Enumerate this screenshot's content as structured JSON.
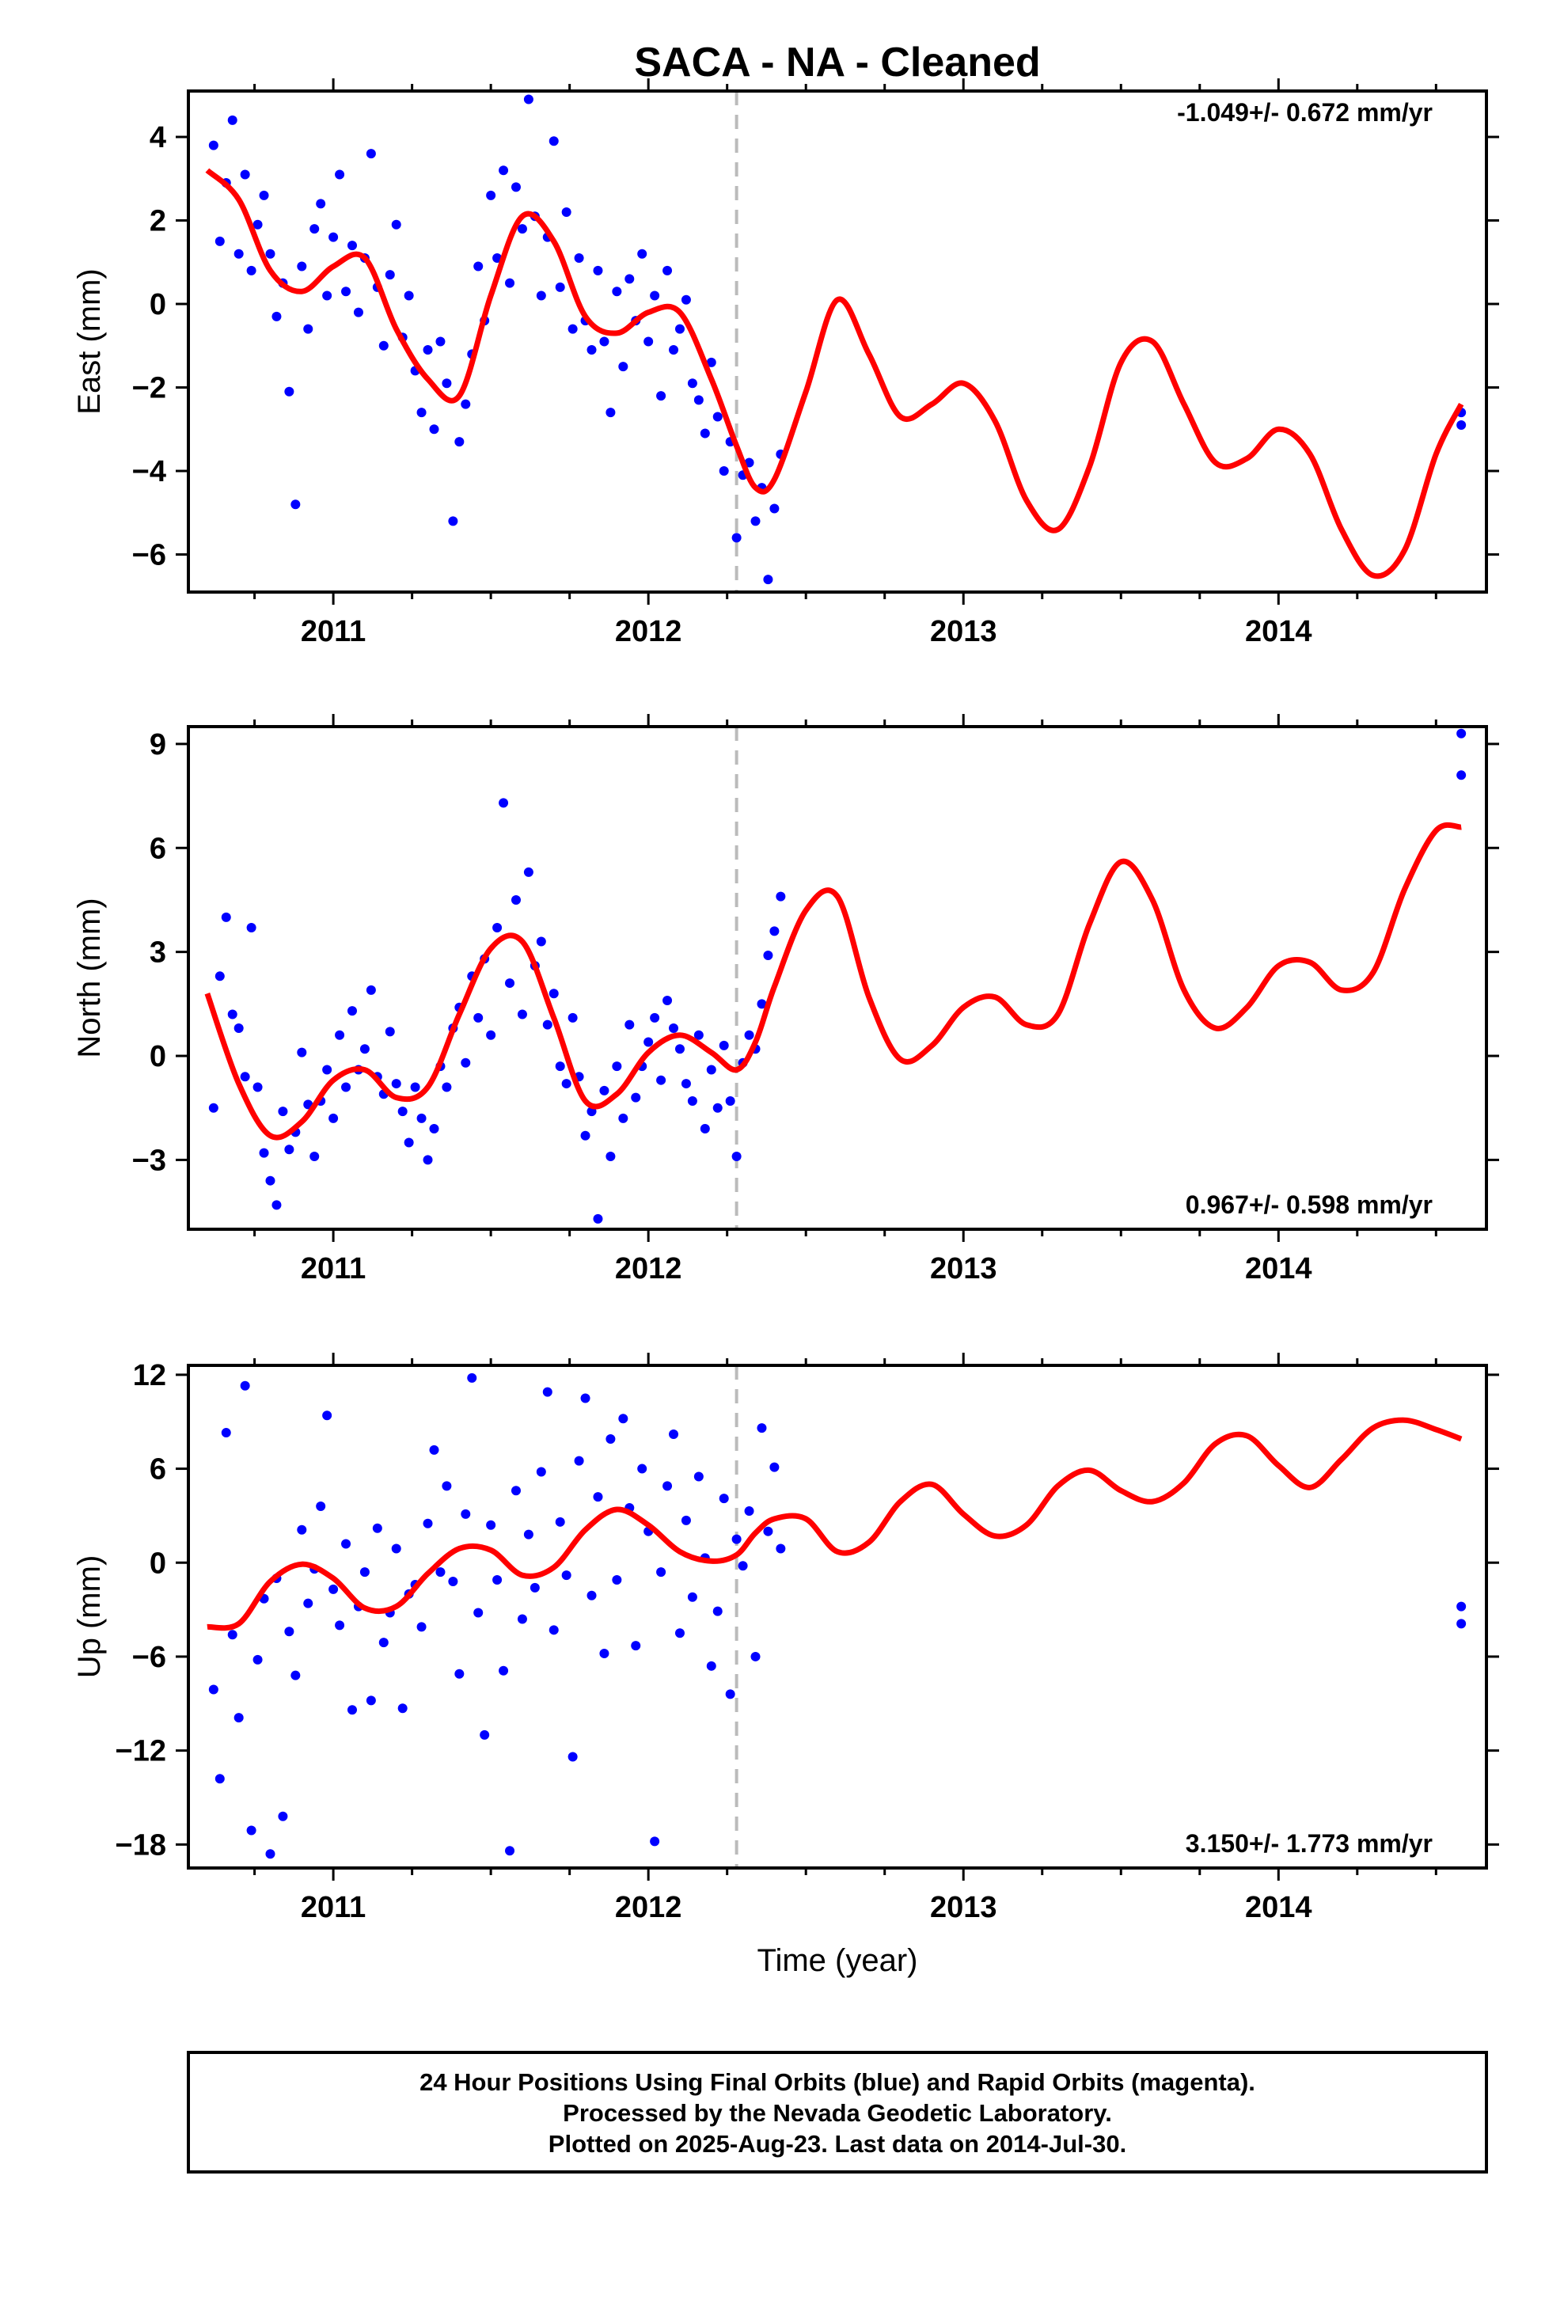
{
  "title": "SACA  - NA - Cleaned",
  "x_axis_label": "Time (year)",
  "footer": {
    "line1": "24 Hour Positions Using Final Orbits (blue) and Rapid Orbits (magenta).",
    "line2": "Processed by the Nevada Geodetic Laboratory.",
    "line3": "Plotted on 2025-Aug-23. Last data on 2014-Jul-30."
  },
  "colors": {
    "points": "#0000ff",
    "model": "#ff0000",
    "reference_line": "#bbbbbb",
    "frame": "#000000"
  },
  "chart_data": [
    {
      "type": "scatter",
      "panel": "east",
      "ylabel": "East (mm)",
      "rate_label": "-1.049+/- 0.672 mm/yr",
      "xlim": [
        2010.54,
        2014.66
      ],
      "ylim": [
        -6.9,
        5.1
      ],
      "x_ticks": [
        2011,
        2012,
        2013,
        2014
      ],
      "y_ticks": [
        4,
        2,
        0,
        -2,
        -4,
        -6
      ],
      "reference_line_x": 2012.28,
      "series": [
        {
          "role": "observations",
          "x": [
            2010.62,
            2010.64,
            2010.66,
            2010.68,
            2010.7,
            2010.72,
            2010.74,
            2010.76,
            2010.78,
            2010.8,
            2010.82,
            2010.84,
            2010.86,
            2010.88,
            2010.9,
            2010.92,
            2010.94,
            2010.96,
            2010.98,
            2011.0,
            2011.02,
            2011.04,
            2011.06,
            2011.08,
            2011.1,
            2011.12,
            2011.14,
            2011.16,
            2011.18,
            2011.2,
            2011.22,
            2011.24,
            2011.26,
            2011.28,
            2011.3,
            2011.32,
            2011.34,
            2011.36,
            2011.38,
            2011.4,
            2011.42,
            2011.44,
            2011.46,
            2011.48,
            2011.5,
            2011.52,
            2011.54,
            2011.56,
            2011.58,
            2011.6,
            2011.62,
            2011.64,
            2011.66,
            2011.68,
            2011.7,
            2011.72,
            2011.74,
            2011.76,
            2011.78,
            2011.8,
            2011.82,
            2011.84,
            2011.86,
            2011.88,
            2011.9,
            2011.92,
            2011.94,
            2011.96,
            2011.98,
            2012.0,
            2012.02,
            2012.04,
            2012.06,
            2012.08,
            2012.1,
            2012.12,
            2012.14,
            2012.16,
            2012.18,
            2012.2,
            2012.22,
            2012.24,
            2012.26,
            2012.28,
            2012.3,
            2012.32,
            2012.34,
            2012.36,
            2012.38,
            2012.4,
            2012.42,
            2014.58,
            2014.58
          ],
          "y": [
            3.8,
            1.5,
            2.9,
            4.4,
            1.2,
            3.1,
            0.8,
            1.9,
            2.6,
            1.2,
            -0.3,
            0.5,
            -2.1,
            -4.8,
            0.9,
            -0.6,
            1.8,
            2.4,
            0.2,
            1.6,
            3.1,
            0.3,
            1.4,
            -0.2,
            1.1,
            3.6,
            0.4,
            -1.0,
            0.7,
            1.9,
            -0.8,
            0.2,
            -1.6,
            -2.6,
            -1.1,
            -3.0,
            -0.9,
            -1.9,
            -5.2,
            -3.3,
            -2.4,
            -1.2,
            0.9,
            -0.4,
            2.6,
            1.1,
            3.2,
            0.5,
            2.8,
            1.8,
            4.9,
            2.1,
            0.2,
            1.6,
            3.9,
            0.4,
            2.2,
            -0.6,
            1.1,
            -0.4,
            -1.1,
            0.8,
            -0.9,
            -2.6,
            0.3,
            -1.5,
            0.6,
            -0.4,
            1.2,
            -0.9,
            0.2,
            -2.2,
            0.8,
            -1.1,
            -0.6,
            0.1,
            -1.9,
            -2.3,
            -3.1,
            -1.4,
            -2.7,
            -4.0,
            -3.3,
            -5.6,
            -4.1,
            -3.8,
            -5.2,
            -4.4,
            -6.6,
            -4.9,
            -3.6,
            -2.9,
            -2.6
          ]
        },
        {
          "role": "model",
          "x": [
            2010.6,
            2010.7,
            2010.8,
            2010.9,
            2011.0,
            2011.1,
            2011.2,
            2011.3,
            2011.4,
            2011.5,
            2011.6,
            2011.7,
            2011.8,
            2011.9,
            2012.0,
            2012.1,
            2012.2,
            2012.28,
            2012.34,
            2012.4,
            2012.5,
            2012.6,
            2012.7,
            2012.8,
            2012.9,
            2013.0,
            2013.1,
            2013.2,
            2013.3,
            2013.4,
            2013.5,
            2013.6,
            2013.7,
            2013.8,
            2013.9,
            2014.0,
            2014.1,
            2014.2,
            2014.3,
            2014.4,
            2014.5,
            2014.58
          ],
          "y": [
            3.2,
            2.5,
            0.8,
            0.3,
            0.9,
            1.1,
            -0.6,
            -1.8,
            -2.2,
            0.2,
            2.1,
            1.5,
            -0.3,
            -0.7,
            -0.2,
            -0.2,
            -1.8,
            -3.4,
            -4.4,
            -4.2,
            -2.1,
            0.1,
            -1.2,
            -2.7,
            -2.4,
            -1.9,
            -2.8,
            -4.7,
            -5.4,
            -3.9,
            -1.4,
            -0.9,
            -2.4,
            -3.8,
            -3.7,
            -3.0,
            -3.6,
            -5.4,
            -6.5,
            -5.9,
            -3.6,
            -2.4
          ]
        }
      ]
    },
    {
      "type": "scatter",
      "panel": "north",
      "ylabel": "North (mm)",
      "rate_label": "0.967+/- 0.598 mm/yr",
      "xlim": [
        2010.54,
        2014.66
      ],
      "ylim": [
        -5.0,
        9.5
      ],
      "x_ticks": [
        2011,
        2012,
        2013,
        2014
      ],
      "y_ticks": [
        9,
        6,
        3,
        0,
        -3
      ],
      "reference_line_x": 2012.28,
      "series": [
        {
          "role": "observations",
          "x": [
            2010.62,
            2010.64,
            2010.66,
            2010.68,
            2010.7,
            2010.72,
            2010.74,
            2010.76,
            2010.78,
            2010.8,
            2010.82,
            2010.84,
            2010.86,
            2010.88,
            2010.9,
            2010.92,
            2010.94,
            2010.96,
            2010.98,
            2011.0,
            2011.02,
            2011.04,
            2011.06,
            2011.08,
            2011.1,
            2011.12,
            2011.14,
            2011.16,
            2011.18,
            2011.2,
            2011.22,
            2011.24,
            2011.26,
            2011.28,
            2011.3,
            2011.32,
            2011.34,
            2011.36,
            2011.38,
            2011.4,
            2011.42,
            2011.44,
            2011.46,
            2011.48,
            2011.5,
            2011.52,
            2011.54,
            2011.56,
            2011.58,
            2011.6,
            2011.62,
            2011.64,
            2011.66,
            2011.68,
            2011.7,
            2011.72,
            2011.74,
            2011.76,
            2011.78,
            2011.8,
            2011.82,
            2011.84,
            2011.86,
            2011.88,
            2011.9,
            2011.92,
            2011.94,
            2011.96,
            2011.98,
            2012.0,
            2012.02,
            2012.04,
            2012.06,
            2012.08,
            2012.1,
            2012.12,
            2012.14,
            2012.16,
            2012.18,
            2012.2,
            2012.22,
            2012.24,
            2012.26,
            2012.28,
            2012.3,
            2012.32,
            2012.34,
            2012.36,
            2012.38,
            2012.4,
            2012.42,
            2014.58,
            2014.58
          ],
          "y": [
            -1.5,
            2.3,
            4.0,
            1.2,
            0.8,
            -0.6,
            3.7,
            -0.9,
            -2.8,
            -3.6,
            -4.3,
            -1.6,
            -2.7,
            -2.2,
            0.1,
            -1.4,
            -2.9,
            -1.3,
            -0.4,
            -1.8,
            0.6,
            -0.9,
            1.3,
            -0.4,
            0.2,
            1.9,
            -0.6,
            -1.1,
            0.7,
            -0.8,
            -1.6,
            -2.5,
            -0.9,
            -1.8,
            -3.0,
            -2.1,
            -0.3,
            -0.9,
            0.8,
            1.4,
            -0.2,
            2.3,
            1.1,
            2.8,
            0.6,
            3.7,
            7.3,
            2.1,
            4.5,
            1.2,
            5.3,
            2.6,
            3.3,
            0.9,
            1.8,
            -0.3,
            -0.8,
            1.1,
            -0.6,
            -2.3,
            -1.6,
            -4.7,
            -1.0,
            -2.9,
            -0.3,
            -1.8,
            0.9,
            -1.2,
            -0.3,
            0.4,
            1.1,
            -0.7,
            1.6,
            0.8,
            0.2,
            -0.8,
            -1.3,
            0.6,
            -2.1,
            -0.4,
            -1.5,
            0.3,
            -1.3,
            -2.9,
            -0.2,
            0.6,
            0.2,
            1.5,
            2.9,
            3.6,
            4.6,
            9.3,
            8.1
          ]
        },
        {
          "role": "model",
          "x": [
            2010.6,
            2010.7,
            2010.8,
            2010.9,
            2011.0,
            2011.1,
            2011.2,
            2011.3,
            2011.4,
            2011.5,
            2011.6,
            2011.7,
            2011.8,
            2011.9,
            2012.0,
            2012.1,
            2012.2,
            2012.28,
            2012.34,
            2012.4,
            2012.5,
            2012.6,
            2012.7,
            2012.8,
            2012.9,
            2013.0,
            2013.1,
            2013.2,
            2013.3,
            2013.4,
            2013.5,
            2013.6,
            2013.7,
            2013.8,
            2013.9,
            2014.0,
            2014.1,
            2014.2,
            2014.3,
            2014.4,
            2014.5,
            2014.58
          ],
          "y": [
            1.8,
            -0.8,
            -2.3,
            -1.9,
            -0.7,
            -0.4,
            -1.2,
            -0.9,
            1.2,
            3.1,
            3.3,
            1.1,
            -1.3,
            -1.1,
            0.1,
            0.6,
            0.1,
            -0.4,
            0.4,
            2.0,
            4.2,
            4.6,
            1.7,
            -0.1,
            0.3,
            1.4,
            1.7,
            0.9,
            1.2,
            3.8,
            5.6,
            4.5,
            1.9,
            0.8,
            1.4,
            2.6,
            2.7,
            1.9,
            2.4,
            4.8,
            6.5,
            6.6
          ]
        }
      ]
    },
    {
      "type": "scatter",
      "panel": "up",
      "ylabel": "Up (mm)",
      "rate_label": "3.150+/- 1.773 mm/yr",
      "xlim": [
        2010.54,
        2014.66
      ],
      "ylim": [
        -19.5,
        12.6
      ],
      "x_ticks": [
        2011,
        2012,
        2013,
        2014
      ],
      "y_ticks": [
        12,
        6,
        0,
        -6,
        -12,
        -18
      ],
      "reference_line_x": 2012.28,
      "series": [
        {
          "role": "observations",
          "x": [
            2010.62,
            2010.64,
            2010.66,
            2010.68,
            2010.7,
            2010.72,
            2010.74,
            2010.76,
            2010.78,
            2010.8,
            2010.82,
            2010.84,
            2010.86,
            2010.88,
            2010.9,
            2010.92,
            2010.94,
            2010.96,
            2010.98,
            2011.0,
            2011.02,
            2011.04,
            2011.06,
            2011.08,
            2011.1,
            2011.12,
            2011.14,
            2011.16,
            2011.18,
            2011.2,
            2011.22,
            2011.24,
            2011.26,
            2011.28,
            2011.3,
            2011.32,
            2011.34,
            2011.36,
            2011.38,
            2011.4,
            2011.42,
            2011.44,
            2011.46,
            2011.48,
            2011.5,
            2011.52,
            2011.54,
            2011.56,
            2011.58,
            2011.6,
            2011.62,
            2011.64,
            2011.66,
            2011.68,
            2011.7,
            2011.72,
            2011.74,
            2011.76,
            2011.78,
            2011.8,
            2011.82,
            2011.84,
            2011.86,
            2011.88,
            2011.9,
            2011.92,
            2011.94,
            2011.96,
            2011.98,
            2012.0,
            2012.02,
            2012.04,
            2012.06,
            2012.08,
            2012.1,
            2012.12,
            2012.14,
            2012.16,
            2012.18,
            2012.2,
            2012.22,
            2012.24,
            2012.26,
            2012.28,
            2012.3,
            2012.32,
            2012.34,
            2012.36,
            2012.38,
            2012.4,
            2012.42,
            2014.58,
            2014.58
          ],
          "y": [
            -8.1,
            -13.8,
            8.3,
            -4.6,
            -9.9,
            11.3,
            -17.1,
            -6.2,
            -2.3,
            -18.6,
            -1.0,
            -16.2,
            -4.4,
            -7.2,
            2.1,
            -2.6,
            -0.4,
            3.6,
            9.4,
            -1.7,
            -4.0,
            1.2,
            -9.4,
            -2.8,
            -0.6,
            -8.8,
            2.2,
            -5.1,
            -3.2,
            0.9,
            -9.3,
            -2.0,
            -1.4,
            -4.1,
            2.5,
            7.2,
            -0.6,
            4.9,
            -1.2,
            -7.1,
            3.1,
            11.8,
            -3.2,
            -11.0,
            2.4,
            -1.1,
            -6.9,
            -18.4,
            4.6,
            -3.6,
            1.8,
            -1.6,
            5.8,
            10.9,
            -4.3,
            2.6,
            -0.8,
            -12.4,
            6.5,
            10.5,
            -2.1,
            4.2,
            -5.8,
            7.9,
            -1.1,
            9.2,
            3.5,
            -5.3,
            6.0,
            2.0,
            -17.8,
            -0.6,
            4.9,
            8.2,
            -4.5,
            2.7,
            -2.2,
            5.5,
            0.3,
            -6.6,
            -3.1,
            4.1,
            -8.4,
            1.5,
            -0.2,
            3.3,
            -6.0,
            8.6,
            2.0,
            6.1,
            0.9,
            -2.8,
            -3.9
          ]
        },
        {
          "role": "model",
          "x": [
            2010.6,
            2010.7,
            2010.8,
            2010.9,
            2011.0,
            2011.1,
            2011.2,
            2011.3,
            2011.4,
            2011.5,
            2011.6,
            2011.7,
            2011.8,
            2011.9,
            2012.0,
            2012.1,
            2012.2,
            2012.28,
            2012.34,
            2012.4,
            2012.5,
            2012.6,
            2012.7,
            2012.8,
            2012.9,
            2013.0,
            2013.1,
            2013.2,
            2013.3,
            2013.4,
            2013.5,
            2013.6,
            2013.7,
            2013.8,
            2013.9,
            2014.0,
            2014.1,
            2014.2,
            2014.3,
            2014.4,
            2014.5,
            2014.58
          ],
          "y": [
            -4.1,
            -3.9,
            -1.2,
            -0.1,
            -1.0,
            -2.9,
            -2.8,
            -0.7,
            0.9,
            0.8,
            -0.8,
            -0.3,
            2.1,
            3.4,
            2.4,
            0.7,
            0.1,
            0.5,
            1.9,
            2.8,
            2.8,
            0.7,
            1.3,
            3.9,
            5.0,
            3.1,
            1.7,
            2.4,
            4.9,
            5.9,
            4.6,
            3.9,
            5.1,
            7.6,
            8.1,
            6.2,
            4.8,
            6.6,
            8.6,
            9.1,
            8.5,
            7.9
          ]
        }
      ]
    }
  ]
}
